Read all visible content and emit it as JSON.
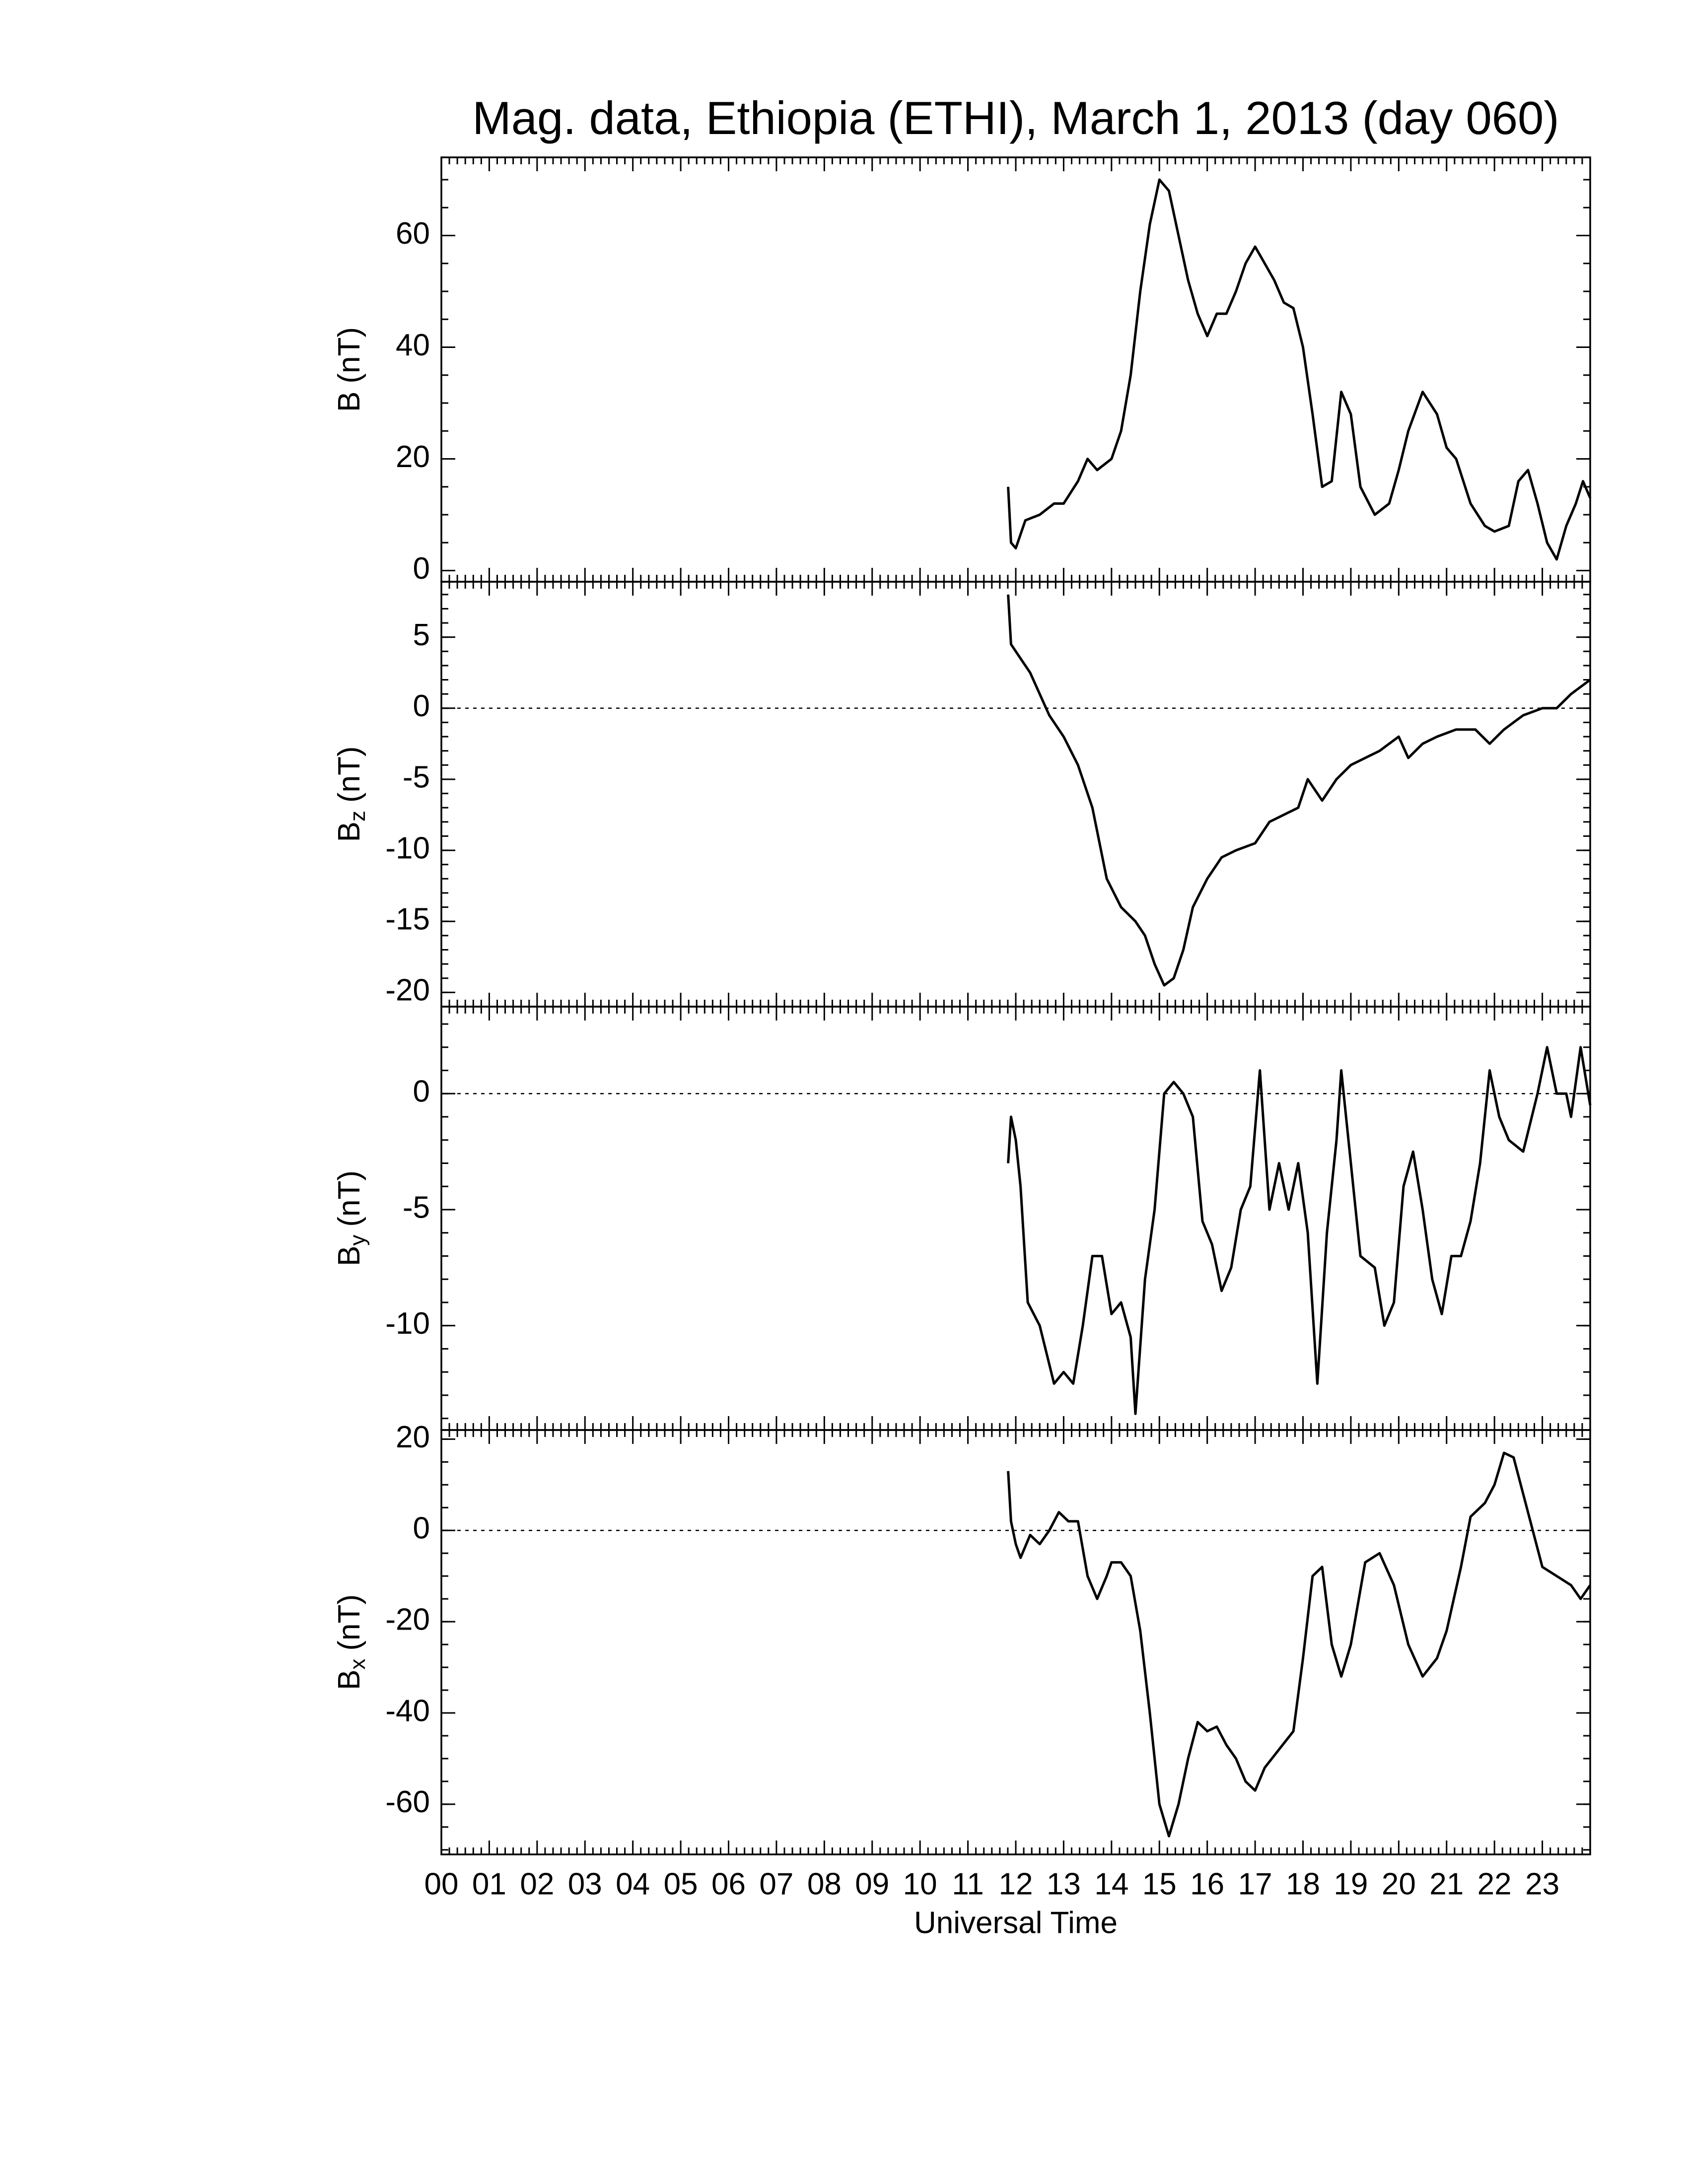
{
  "chart_data": [
    {
      "type": "line",
      "title": "Mag. data, Ethiopia (ETHI), March 1, 2013 (day 060)",
      "ylabel": {
        "main": "B",
        "unit": "(nT)"
      },
      "color": "#000000",
      "zero_line": false,
      "ylim": [
        -2,
        74
      ],
      "yticks": [
        0,
        20,
        40,
        60
      ],
      "yminor": 4,
      "x": [
        11.84,
        11.9,
        12.0,
        12.2,
        12.5,
        12.8,
        13.0,
        13.3,
        13.5,
        13.7,
        14.0,
        14.2,
        14.4,
        14.6,
        14.8,
        15.0,
        15.2,
        15.4,
        15.6,
        15.8,
        16.0,
        16.2,
        16.4,
        16.6,
        16.8,
        17.0,
        17.2,
        17.4,
        17.6,
        17.8,
        18.0,
        18.2,
        18.4,
        18.6,
        18.8,
        19.0,
        19.2,
        19.5,
        19.8,
        20.0,
        20.2,
        20.5,
        20.8,
        21.0,
        21.2,
        21.5,
        21.8,
        22.0,
        22.3,
        22.5,
        22.7,
        22.9,
        23.1,
        23.3,
        23.5,
        23.7,
        23.85,
        24.0
      ],
      "values": [
        15,
        5,
        4,
        9,
        10,
        12,
        12,
        16,
        20,
        18,
        20,
        25,
        35,
        50,
        62,
        70,
        68,
        60,
        52,
        46,
        42,
        46,
        46,
        50,
        55,
        58,
        55,
        52,
        48,
        47,
        40,
        28,
        15,
        16,
        32,
        28,
        15,
        10,
        12,
        18,
        25,
        32,
        28,
        22,
        20,
        12,
        8,
        7,
        8,
        16,
        18,
        12,
        5,
        2,
        8,
        12,
        16,
        13
      ]
    },
    {
      "type": "line",
      "ylabel": {
        "main": "B",
        "sub": "z",
        "unit": "(nT)"
      },
      "color": "#000000",
      "zero_line": true,
      "ylim": [
        -21,
        8.9
      ],
      "yticks": [
        5,
        0,
        -5,
        -10,
        -15,
        -20
      ],
      "yminor": 5,
      "x": [
        11.84,
        11.9,
        12.1,
        12.3,
        12.5,
        12.7,
        13.0,
        13.3,
        13.6,
        13.9,
        14.2,
        14.5,
        14.7,
        14.9,
        15.1,
        15.3,
        15.5,
        15.7,
        16.0,
        16.3,
        16.6,
        17.0,
        17.3,
        17.6,
        17.9,
        18.1,
        18.4,
        18.7,
        19.0,
        19.3,
        19.6,
        20.0,
        20.2,
        20.5,
        20.8,
        21.2,
        21.6,
        21.9,
        22.2,
        22.6,
        23.0,
        23.3,
        23.6,
        24.0
      ],
      "values": [
        8,
        4.5,
        3.5,
        2.5,
        1,
        -0.5,
        -2,
        -4,
        -7,
        -12,
        -14,
        -15,
        -16,
        -18,
        -19.5,
        -19,
        -17,
        -14,
        -12,
        -10.5,
        -10,
        -9.5,
        -8,
        -7.5,
        -7,
        -5,
        -6.5,
        -5,
        -4,
        -3.5,
        -3,
        -2,
        -3.5,
        -2.5,
        -2,
        -1.5,
        -1.5,
        -2.5,
        -1.5,
        -0.5,
        0,
        0,
        1,
        2
      ]
    },
    {
      "type": "line",
      "ylabel": {
        "main": "B",
        "sub": "y",
        "unit": "(nT)"
      },
      "color": "#000000",
      "zero_line": true,
      "ylim": [
        -14.5,
        3.75
      ],
      "yticks": [
        0,
        -5,
        -10
      ],
      "yminor": 5,
      "x": [
        11.84,
        11.9,
        12.0,
        12.1,
        12.25,
        12.5,
        12.8,
        13.0,
        13.2,
        13.4,
        13.6,
        13.8,
        14.0,
        14.2,
        14.4,
        14.5,
        14.7,
        14.9,
        15.1,
        15.3,
        15.5,
        15.7,
        15.9,
        16.1,
        16.3,
        16.5,
        16.7,
        16.9,
        17.1,
        17.3,
        17.5,
        17.7,
        17.9,
        18.1,
        18.3,
        18.5,
        18.7,
        18.8,
        19.0,
        19.2,
        19.5,
        19.7,
        19.9,
        20.1,
        20.3,
        20.5,
        20.7,
        20.9,
        21.1,
        21.3,
        21.5,
        21.7,
        21.9,
        22.1,
        22.3,
        22.6,
        22.9,
        23.1,
        23.3,
        23.5,
        23.6,
        23.8,
        24.0
      ],
      "values": [
        -3,
        -1,
        -2,
        -4,
        -9,
        -10,
        -12.5,
        -12,
        -12.5,
        -10,
        -7,
        -7,
        -9.5,
        -9,
        -10.5,
        -13.8,
        -8,
        -5,
        0,
        0.5,
        0,
        -1,
        -5.5,
        -6.5,
        -8.5,
        -7.5,
        -5,
        -4,
        1,
        -5,
        -3,
        -5,
        -3,
        -6,
        -12.5,
        -6,
        -2,
        1,
        -3,
        -7,
        -7.5,
        -10,
        -9,
        -4,
        -2.5,
        -5,
        -8,
        -9.5,
        -7,
        -7,
        -5.5,
        -3,
        1,
        -1,
        -2,
        -2.5,
        0,
        2,
        0,
        0,
        -1,
        2,
        -0.5
      ]
    },
    {
      "type": "line",
      "ylabel": {
        "main": "B",
        "sub": "x",
        "unit": "(nT)"
      },
      "color": "#000000",
      "zero_line": true,
      "ylim": [
        -71,
        22
      ],
      "yticks": [
        20,
        0,
        -20,
        -40,
        -60
      ],
      "yminor": 4,
      "xlabel": "Universal Time",
      "xlim": [
        0,
        24
      ],
      "xminor": 6,
      "xticks": [
        {
          "value": 0,
          "label": "00"
        },
        {
          "value": 1,
          "label": "01"
        },
        {
          "value": 2,
          "label": "02"
        },
        {
          "value": 3,
          "label": "03"
        },
        {
          "value": 4,
          "label": "04"
        },
        {
          "value": 5,
          "label": "05"
        },
        {
          "value": 6,
          "label": "06"
        },
        {
          "value": 7,
          "label": "07"
        },
        {
          "value": 8,
          "label": "08"
        },
        {
          "value": 9,
          "label": "09"
        },
        10,
        11,
        12,
        13,
        14,
        15,
        16,
        17,
        18,
        19,
        20,
        21,
        22,
        23
      ],
      "x": [
        11.84,
        11.9,
        12.0,
        12.1,
        12.3,
        12.5,
        12.7,
        12.9,
        13.1,
        13.3,
        13.5,
        13.7,
        13.9,
        14.0,
        14.2,
        14.4,
        14.6,
        14.8,
        15.0,
        15.2,
        15.4,
        15.6,
        15.8,
        16.0,
        16.2,
        16.4,
        16.6,
        16.8,
        17.0,
        17.2,
        17.5,
        17.8,
        18.0,
        18.2,
        18.4,
        18.6,
        18.8,
        19.0,
        19.3,
        19.6,
        19.9,
        20.2,
        20.5,
        20.8,
        21.0,
        21.3,
        21.5,
        21.8,
        22.0,
        22.2,
        22.4,
        22.6,
        22.8,
        23.0,
        23.3,
        23.6,
        23.8,
        24.0
      ],
      "values": [
        13,
        2,
        -3,
        -6,
        -1,
        -3,
        0,
        4,
        2,
        2,
        -10,
        -15,
        -10,
        -7,
        -7,
        -10,
        -22,
        -40,
        -60,
        -67,
        -60,
        -50,
        -42,
        -44,
        -43,
        -47,
        -50,
        -55,
        -57,
        -52,
        -48,
        -44,
        -28,
        -10,
        -8,
        -25,
        -32,
        -25,
        -7,
        -5,
        -12,
        -25,
        -32,
        -28,
        -22,
        -8,
        3,
        6,
        10,
        17,
        16,
        8,
        0,
        -8,
        -10,
        -12,
        -15,
        -12
      ]
    }
  ]
}
